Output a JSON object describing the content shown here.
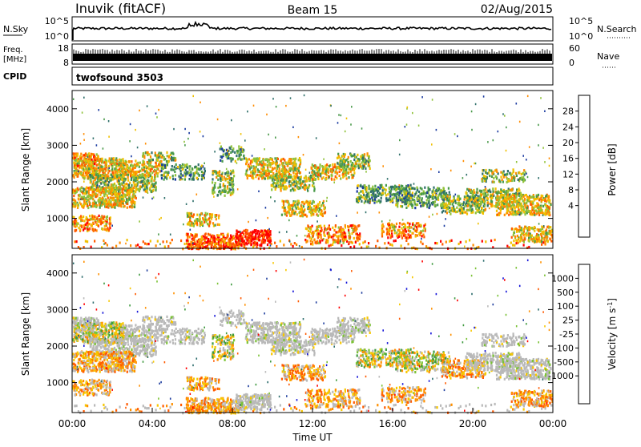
{
  "header": {
    "station": "Inuvik (fitACF)",
    "beam": "Beam 15",
    "date": "02/Aug/2015"
  },
  "top_panels": {
    "nsky_label": "N.Sky",
    "nsky_ticks": [
      "10^5",
      "10^0"
    ],
    "nsearch_label": "N.Search",
    "nsearch_ticks": [
      "10^5",
      "10^0"
    ],
    "freq_label": "Freq.",
    "freq_unit": "[MHz]",
    "freq_ticks": [
      "18",
      "8"
    ],
    "nave_label": "Nave",
    "nave_ticks": [
      "60",
      "0"
    ],
    "cpid_label": "CPID",
    "cpid_value": "twofsound 3503"
  },
  "colors": {
    "power": [
      "#0000ff",
      "#1a3aa0",
      "#2f6f6a",
      "#4a9a4a",
      "#8fc23a",
      "#f0c000",
      "#ff8c00",
      "#ff5a00",
      "#ff0000"
    ],
    "velocity_high_to_low": [
      "#1212d8",
      "#1f3e9e",
      "#2e6e6e",
      "#3f9a3f",
      "#7ac234",
      "#b9b9b9",
      "#f7c700",
      "#ff9000",
      "#ff5a00",
      "#ff0000"
    ]
  },
  "chart_data": [
    {
      "type": "heatmap",
      "name": "power-panel",
      "ylabel": "Slant Range [km]",
      "yticks": [
        "4000",
        "3000",
        "2000",
        "1000"
      ],
      "colorbar_label": "Power [dB]",
      "colorbar_ticks": [
        "28",
        "24",
        "20",
        "16",
        "12",
        "8",
        "4"
      ]
    },
    {
      "type": "heatmap",
      "name": "velocity-panel",
      "ylabel": "Slant Range [km]",
      "yticks": [
        "4000",
        "3000",
        "2000",
        "1000"
      ],
      "colorbar_label": "Velocity [m s",
      "colorbar_unit_sup": "-1",
      "colorbar_ticks": [
        "1000",
        "500",
        "100",
        "25",
        "-25",
        "-100",
        "-500",
        "-1000"
      ],
      "xlabel": "Time UT",
      "xticks": [
        "00:00",
        "04:00",
        "08:00",
        "12:00",
        "16:00",
        "20:00",
        "00:00"
      ]
    }
  ]
}
